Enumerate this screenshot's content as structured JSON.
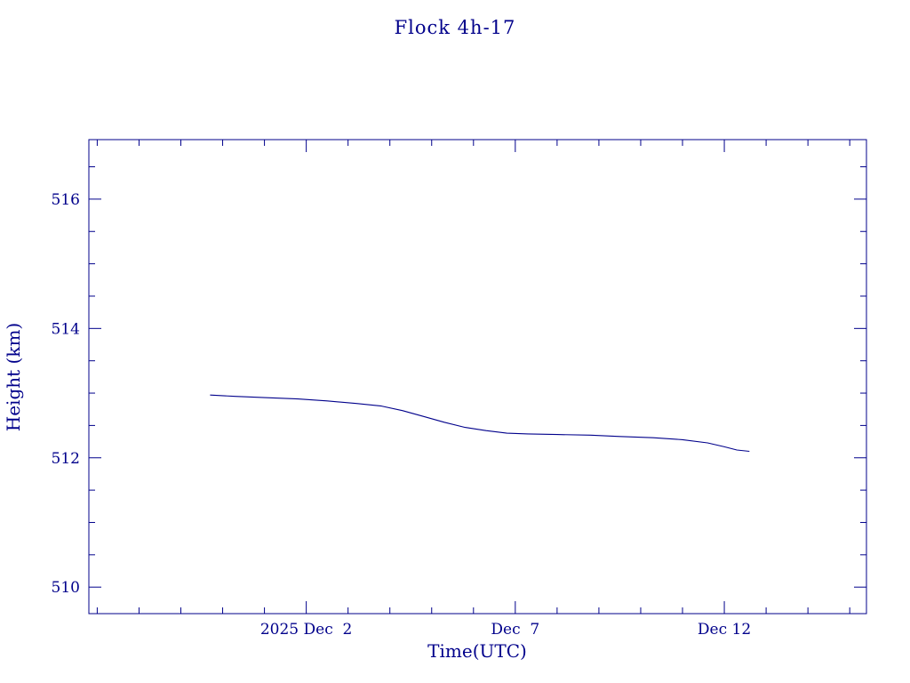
{
  "page": {
    "background": "#ffffff",
    "accent_color": "#00008b"
  },
  "chart_data": {
    "type": "line",
    "title": "Flock 4h-17",
    "xlabel": "Time(UTC)",
    "ylabel": "Height (km)",
    "color": "#00008b",
    "grid": false,
    "legend": "none",
    "x_axis_note": "x values are day-of-month for Dec 2025 (0 = Nov 30, negative = late Nov)",
    "xlim": [
      -3.2,
      15.4
    ],
    "ylim": [
      509.59,
      516.92
    ],
    "x_major_ticks": [
      {
        "x": 2,
        "label": "2025 Dec  2"
      },
      {
        "x": 7,
        "label": "Dec  7"
      },
      {
        "x": 12,
        "label": "Dec 12"
      }
    ],
    "x_minor_tick_step": 1,
    "y_major_ticks": [
      {
        "y": 510,
        "label": "510"
      },
      {
        "y": 512,
        "label": "512"
      },
      {
        "y": 514,
        "label": "514"
      },
      {
        "y": 516,
        "label": "516"
      }
    ],
    "y_minor_tick_step": 0.5,
    "series": [
      {
        "name": "height",
        "points": [
          [
            -0.3,
            512.97
          ],
          [
            0.3,
            512.95
          ],
          [
            1.0,
            512.93
          ],
          [
            1.8,
            512.91
          ],
          [
            2.5,
            512.88
          ],
          [
            3.2,
            512.84
          ],
          [
            3.8,
            512.8
          ],
          [
            4.3,
            512.73
          ],
          [
            4.8,
            512.64
          ],
          [
            5.3,
            512.55
          ],
          [
            5.8,
            512.47
          ],
          [
            6.3,
            512.42
          ],
          [
            6.8,
            512.38
          ],
          [
            7.3,
            512.37
          ],
          [
            8.0,
            512.36
          ],
          [
            8.8,
            512.35
          ],
          [
            9.5,
            512.33
          ],
          [
            10.3,
            512.31
          ],
          [
            11.0,
            512.28
          ],
          [
            11.6,
            512.23
          ],
          [
            12.0,
            512.17
          ],
          [
            12.3,
            512.12
          ],
          [
            12.6,
            512.1
          ]
        ]
      }
    ]
  }
}
